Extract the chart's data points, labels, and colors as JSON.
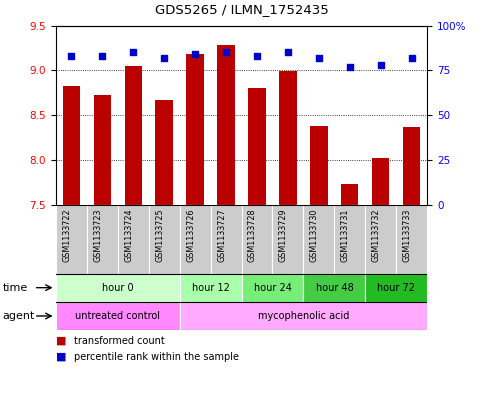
{
  "title": "GDS5265 / ILMN_1752435",
  "samples": [
    "GSM1133722",
    "GSM1133723",
    "GSM1133724",
    "GSM1133725",
    "GSM1133726",
    "GSM1133727",
    "GSM1133728",
    "GSM1133729",
    "GSM1133730",
    "GSM1133731",
    "GSM1133732",
    "GSM1133733"
  ],
  "bar_values": [
    8.82,
    8.72,
    9.05,
    8.67,
    9.18,
    9.28,
    8.8,
    8.99,
    8.38,
    7.73,
    8.02,
    8.37
  ],
  "bar_bottom": 7.5,
  "percentile_values": [
    83,
    83,
    85,
    82,
    84,
    85,
    83,
    85,
    82,
    77,
    78,
    82
  ],
  "ylim": [
    7.5,
    9.5
  ],
  "ylim_right": [
    0,
    100
  ],
  "yticks_left": [
    7.5,
    8.0,
    8.5,
    9.0,
    9.5
  ],
  "yticks_right": [
    0,
    25,
    50,
    75,
    100
  ],
  "bar_color": "#bb0000",
  "dot_color": "#0000cc",
  "time_groups": [
    {
      "label": "hour 0",
      "start": 0,
      "end": 3,
      "color": "#ccffcc"
    },
    {
      "label": "hour 12",
      "start": 4,
      "end": 5,
      "color": "#aaffaa"
    },
    {
      "label": "hour 24",
      "start": 6,
      "end": 7,
      "color": "#77ee77"
    },
    {
      "label": "hour 48",
      "start": 8,
      "end": 9,
      "color": "#44cc44"
    },
    {
      "label": "hour 72",
      "start": 10,
      "end": 11,
      "color": "#22bb22"
    }
  ],
  "agent_groups": [
    {
      "label": "untreated control",
      "start": 0,
      "end": 3,
      "color": "#ff88ff"
    },
    {
      "label": "mycophenolic acid",
      "start": 4,
      "end": 11,
      "color": "#ffaaff"
    }
  ],
  "legend_bar_label": "transformed count",
  "legend_dot_label": "percentile rank within the sample",
  "label_time": "time",
  "label_agent": "agent",
  "sample_bg_color": "#cccccc",
  "bg_color": "#ffffff",
  "right_yticklabels": [
    "0",
    "25",
    "50",
    "75",
    "100%"
  ]
}
